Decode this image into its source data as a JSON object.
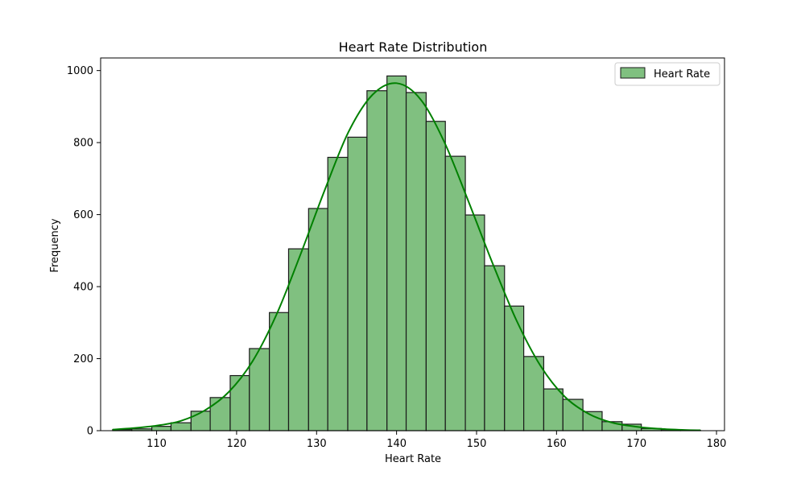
{
  "chart_data": {
    "type": "bar",
    "title": "Heart Rate Distribution",
    "xlabel": "Heart Rate",
    "ylabel": "Frequency",
    "xlim": [
      103,
      181
    ],
    "ylim": [
      0,
      1035
    ],
    "xticks": [
      110,
      120,
      130,
      140,
      150,
      160,
      170,
      180
    ],
    "yticks": [
      0,
      200,
      400,
      600,
      800,
      1000
    ],
    "grid": false,
    "legend_position": "top-right",
    "series": [
      {
        "name": "Heart Rate",
        "bins": [
          {
            "x0": 104.5,
            "x1": 106.9,
            "value": 3
          },
          {
            "x0": 106.9,
            "x1": 109.4,
            "value": 5
          },
          {
            "x0": 109.4,
            "x1": 111.8,
            "value": 12
          },
          {
            "x0": 111.8,
            "x1": 114.3,
            "value": 22
          },
          {
            "x0": 114.3,
            "x1": 116.7,
            "value": 54
          },
          {
            "x0": 116.7,
            "x1": 119.2,
            "value": 92
          },
          {
            "x0": 119.2,
            "x1": 121.6,
            "value": 153
          },
          {
            "x0": 121.6,
            "x1": 124.1,
            "value": 228
          },
          {
            "x0": 124.1,
            "x1": 126.5,
            "value": 328
          },
          {
            "x0": 126.5,
            "x1": 129.0,
            "value": 505
          },
          {
            "x0": 129.0,
            "x1": 131.4,
            "value": 617
          },
          {
            "x0": 131.4,
            "x1": 133.9,
            "value": 759
          },
          {
            "x0": 133.9,
            "x1": 136.3,
            "value": 815
          },
          {
            "x0": 136.3,
            "x1": 138.8,
            "value": 944
          },
          {
            "x0": 138.8,
            "x1": 141.2,
            "value": 985
          },
          {
            "x0": 141.2,
            "x1": 143.7,
            "value": 939
          },
          {
            "x0": 143.7,
            "x1": 146.1,
            "value": 859
          },
          {
            "x0": 146.1,
            "x1": 148.6,
            "value": 762
          },
          {
            "x0": 148.6,
            "x1": 151.0,
            "value": 599
          },
          {
            "x0": 151.0,
            "x1": 153.5,
            "value": 458
          },
          {
            "x0": 153.5,
            "x1": 155.9,
            "value": 346
          },
          {
            "x0": 155.9,
            "x1": 158.4,
            "value": 206
          },
          {
            "x0": 158.4,
            "x1": 160.8,
            "value": 116
          },
          {
            "x0": 160.8,
            "x1": 163.3,
            "value": 87
          },
          {
            "x0": 163.3,
            "x1": 165.7,
            "value": 53
          },
          {
            "x0": 165.7,
            "x1": 168.2,
            "value": 25
          },
          {
            "x0": 168.2,
            "x1": 170.6,
            "value": 18
          },
          {
            "x0": 170.6,
            "x1": 173.1,
            "value": 6
          },
          {
            "x0": 173.1,
            "x1": 175.5,
            "value": 3
          },
          {
            "x0": 175.5,
            "x1": 178.0,
            "value": 1
          }
        ]
      }
    ],
    "kde": {
      "x": [
        104.5,
        107,
        110,
        113,
        116,
        119,
        122,
        125,
        128,
        131,
        134,
        137,
        140,
        143,
        146,
        149,
        152,
        155,
        158,
        161,
        164,
        167,
        170,
        173,
        176,
        178
      ],
      "y": [
        3,
        7,
        14,
        27,
        56,
        107,
        193,
        323,
        490,
        667,
        830,
        933,
        965,
        920,
        800,
        636,
        465,
        306,
        180,
        95,
        47,
        22,
        11,
        5,
        2,
        1
      ]
    },
    "colors": {
      "bar_fill": "#80c080",
      "bar_edge": "#1a1a1a",
      "kde_line": "#008000"
    }
  }
}
